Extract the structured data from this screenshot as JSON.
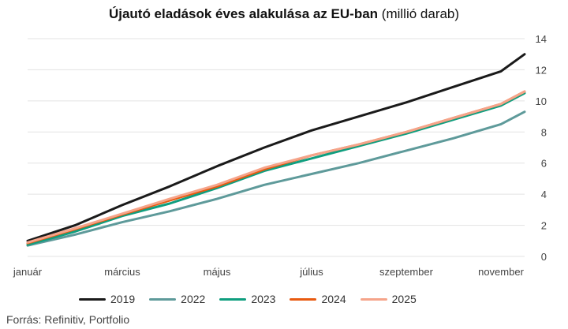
{
  "title": {
    "bold": "Újautó eladások éves alakulása az EU-ban",
    "normal": "(millió darab)"
  },
  "source": "Forrás: Refinitiv, Portfolio",
  "chart_data": {
    "type": "line",
    "title": "Újautó eladások éves alakulása az EU-ban (millió darab)",
    "xlabel": "",
    "ylabel": "",
    "x_tick_labels": [
      "január",
      "március",
      "május",
      "július",
      "szeptember",
      "november"
    ],
    "x_tick_positions": [
      0,
      2,
      4,
      6,
      8,
      10
    ],
    "xlim": [
      0,
      10.5
    ],
    "ylim": [
      0,
      14
    ],
    "y_ticks": [
      0,
      2,
      4,
      6,
      8,
      10,
      12,
      14
    ],
    "y_axis_side": "right",
    "grid": true,
    "legend_position": "bottom",
    "series": [
      {
        "name": "2019",
        "color": "#1a1a1a",
        "x": [
          0,
          1,
          2,
          3,
          4,
          5,
          6,
          7,
          8,
          9,
          10,
          10.5
        ],
        "values": [
          1.0,
          2.0,
          3.3,
          4.5,
          5.8,
          7.0,
          8.1,
          9.0,
          9.9,
          10.9,
          11.9,
          13.0
        ]
      },
      {
        "name": "2022",
        "color": "#5e9a9a",
        "x": [
          0,
          1,
          2,
          3,
          4,
          5,
          6,
          7,
          8,
          9,
          10,
          10.5
        ],
        "values": [
          0.7,
          1.4,
          2.2,
          2.9,
          3.7,
          4.6,
          5.3,
          6.0,
          6.8,
          7.6,
          8.5,
          9.3
        ]
      },
      {
        "name": "2023",
        "color": "#0f9e7f",
        "x": [
          0,
          1,
          2,
          3,
          4,
          5,
          6,
          7,
          8,
          9,
          10,
          10.5
        ],
        "values": [
          0.75,
          1.6,
          2.6,
          3.4,
          4.4,
          5.5,
          6.3,
          7.1,
          7.9,
          8.8,
          9.7,
          10.5
        ]
      },
      {
        "name": "2024",
        "color": "#e85a10",
        "x": [
          0,
          1,
          2,
          3,
          4,
          5,
          6,
          7,
          8,
          9,
          10,
          10.5
        ],
        "values": [
          0.85,
          1.75,
          2.7,
          3.6,
          4.5,
          5.6,
          6.5,
          7.2,
          8.0,
          8.9,
          9.8,
          10.6
        ]
      },
      {
        "name": "2025",
        "color": "#f5a48a",
        "x": [
          0,
          1,
          2,
          3,
          4,
          5,
          6,
          7,
          8,
          9,
          10,
          10.5
        ],
        "values": [
          0.9,
          1.8,
          2.75,
          3.7,
          4.6,
          5.7,
          6.5,
          7.2,
          8.0,
          8.9,
          9.8,
          10.6
        ]
      }
    ]
  }
}
